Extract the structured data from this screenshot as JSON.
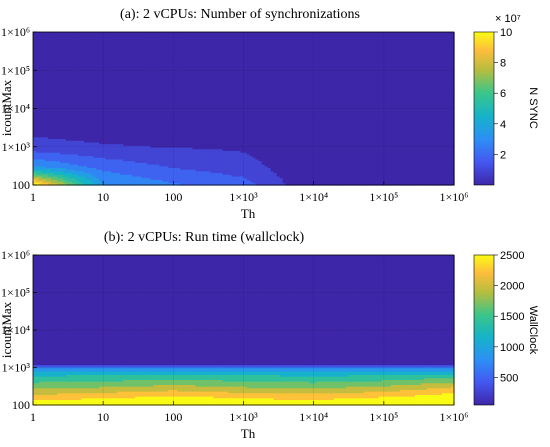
{
  "chart_data": [
    {
      "type": "heatmap",
      "title": "(a): 2 vCPUs: Number of synchronizations",
      "xlabel": "Th",
      "ylabel": "icountMax",
      "x_scale": "log",
      "y_scale": "log",
      "xlim": [
        1,
        1000000
      ],
      "ylim": [
        100,
        1000000
      ],
      "x_ticks": [
        "1",
        "10",
        "100",
        "1×10³",
        "1×10⁴",
        "1×10⁵",
        "1×10⁶"
      ],
      "y_ticks": [
        "100",
        "1×10³",
        "1×10⁴",
        "1×10⁵",
        "1×10⁶"
      ],
      "colorbar": {
        "label": "N SYNC",
        "multiplier": "× 10⁷",
        "ticks": [
          "2",
          "4",
          "6",
          "8",
          "10"
        ],
        "range": [
          0,
          10
        ]
      },
      "x": [
        1,
        10,
        100,
        1000,
        10000,
        100000,
        1000000
      ],
      "y": [
        100,
        300,
        1000,
        10000,
        100000,
        1000000
      ],
      "z": [
        [
          10,
          3.4,
          2.6,
          2.0,
          0.05,
          0.05,
          0.05
        ],
        [
          3.4,
          2.2,
          1.6,
          1.2,
          0.05,
          0.05,
          0.05
        ],
        [
          1.1,
          0.9,
          0.8,
          0.7,
          0.05,
          0.05,
          0.05
        ],
        [
          0.05,
          0.05,
          0.05,
          0.05,
          0.05,
          0.05,
          0.05
        ],
        [
          0.05,
          0.05,
          0.05,
          0.05,
          0.05,
          0.05,
          0.05
        ],
        [
          0.05,
          0.05,
          0.05,
          0.05,
          0.05,
          0.05,
          0.05
        ]
      ]
    },
    {
      "type": "heatmap",
      "title": "(b): 2 vCPUs: Run time  (wallclock)",
      "xlabel": "Th",
      "ylabel": "icountMax",
      "x_scale": "log",
      "y_scale": "log",
      "xlim": [
        1,
        1000000
      ],
      "ylim": [
        100,
        1000000
      ],
      "x_ticks": [
        "1",
        "10",
        "100",
        "1×10³",
        "1×10⁴",
        "1×10⁵",
        "1×10⁶"
      ],
      "y_ticks": [
        "100",
        "1×10³",
        "1×10⁴",
        "1×10⁵",
        "1×10⁶"
      ],
      "colorbar": {
        "label": "WallClock",
        "multiplier": "",
        "ticks": [
          "500",
          "1000",
          "1500",
          "2000",
          "2500"
        ],
        "range": [
          50,
          2500
        ]
      },
      "x": [
        1,
        10,
        100,
        1000,
        10000,
        100000,
        1000000
      ],
      "y": [
        100,
        150,
        300,
        600,
        1000,
        1200,
        1000000
      ],
      "z": [
        [
          2500,
          2550,
          2500,
          2450,
          2450,
          2450,
          2500
        ],
        [
          2150,
          2250,
          2350,
          2250,
          2200,
          2300,
          2450
        ],
        [
          1700,
          1750,
          1850,
          1750,
          1700,
          1800,
          2000
        ],
        [
          1250,
          1300,
          1350,
          1300,
          1250,
          1300,
          1400
        ],
        [
          700,
          700,
          720,
          700,
          700,
          700,
          720
        ],
        [
          60,
          60,
          60,
          60,
          60,
          60,
          60
        ],
        [
          60,
          60,
          60,
          60,
          60,
          60,
          60
        ]
      ]
    }
  ]
}
